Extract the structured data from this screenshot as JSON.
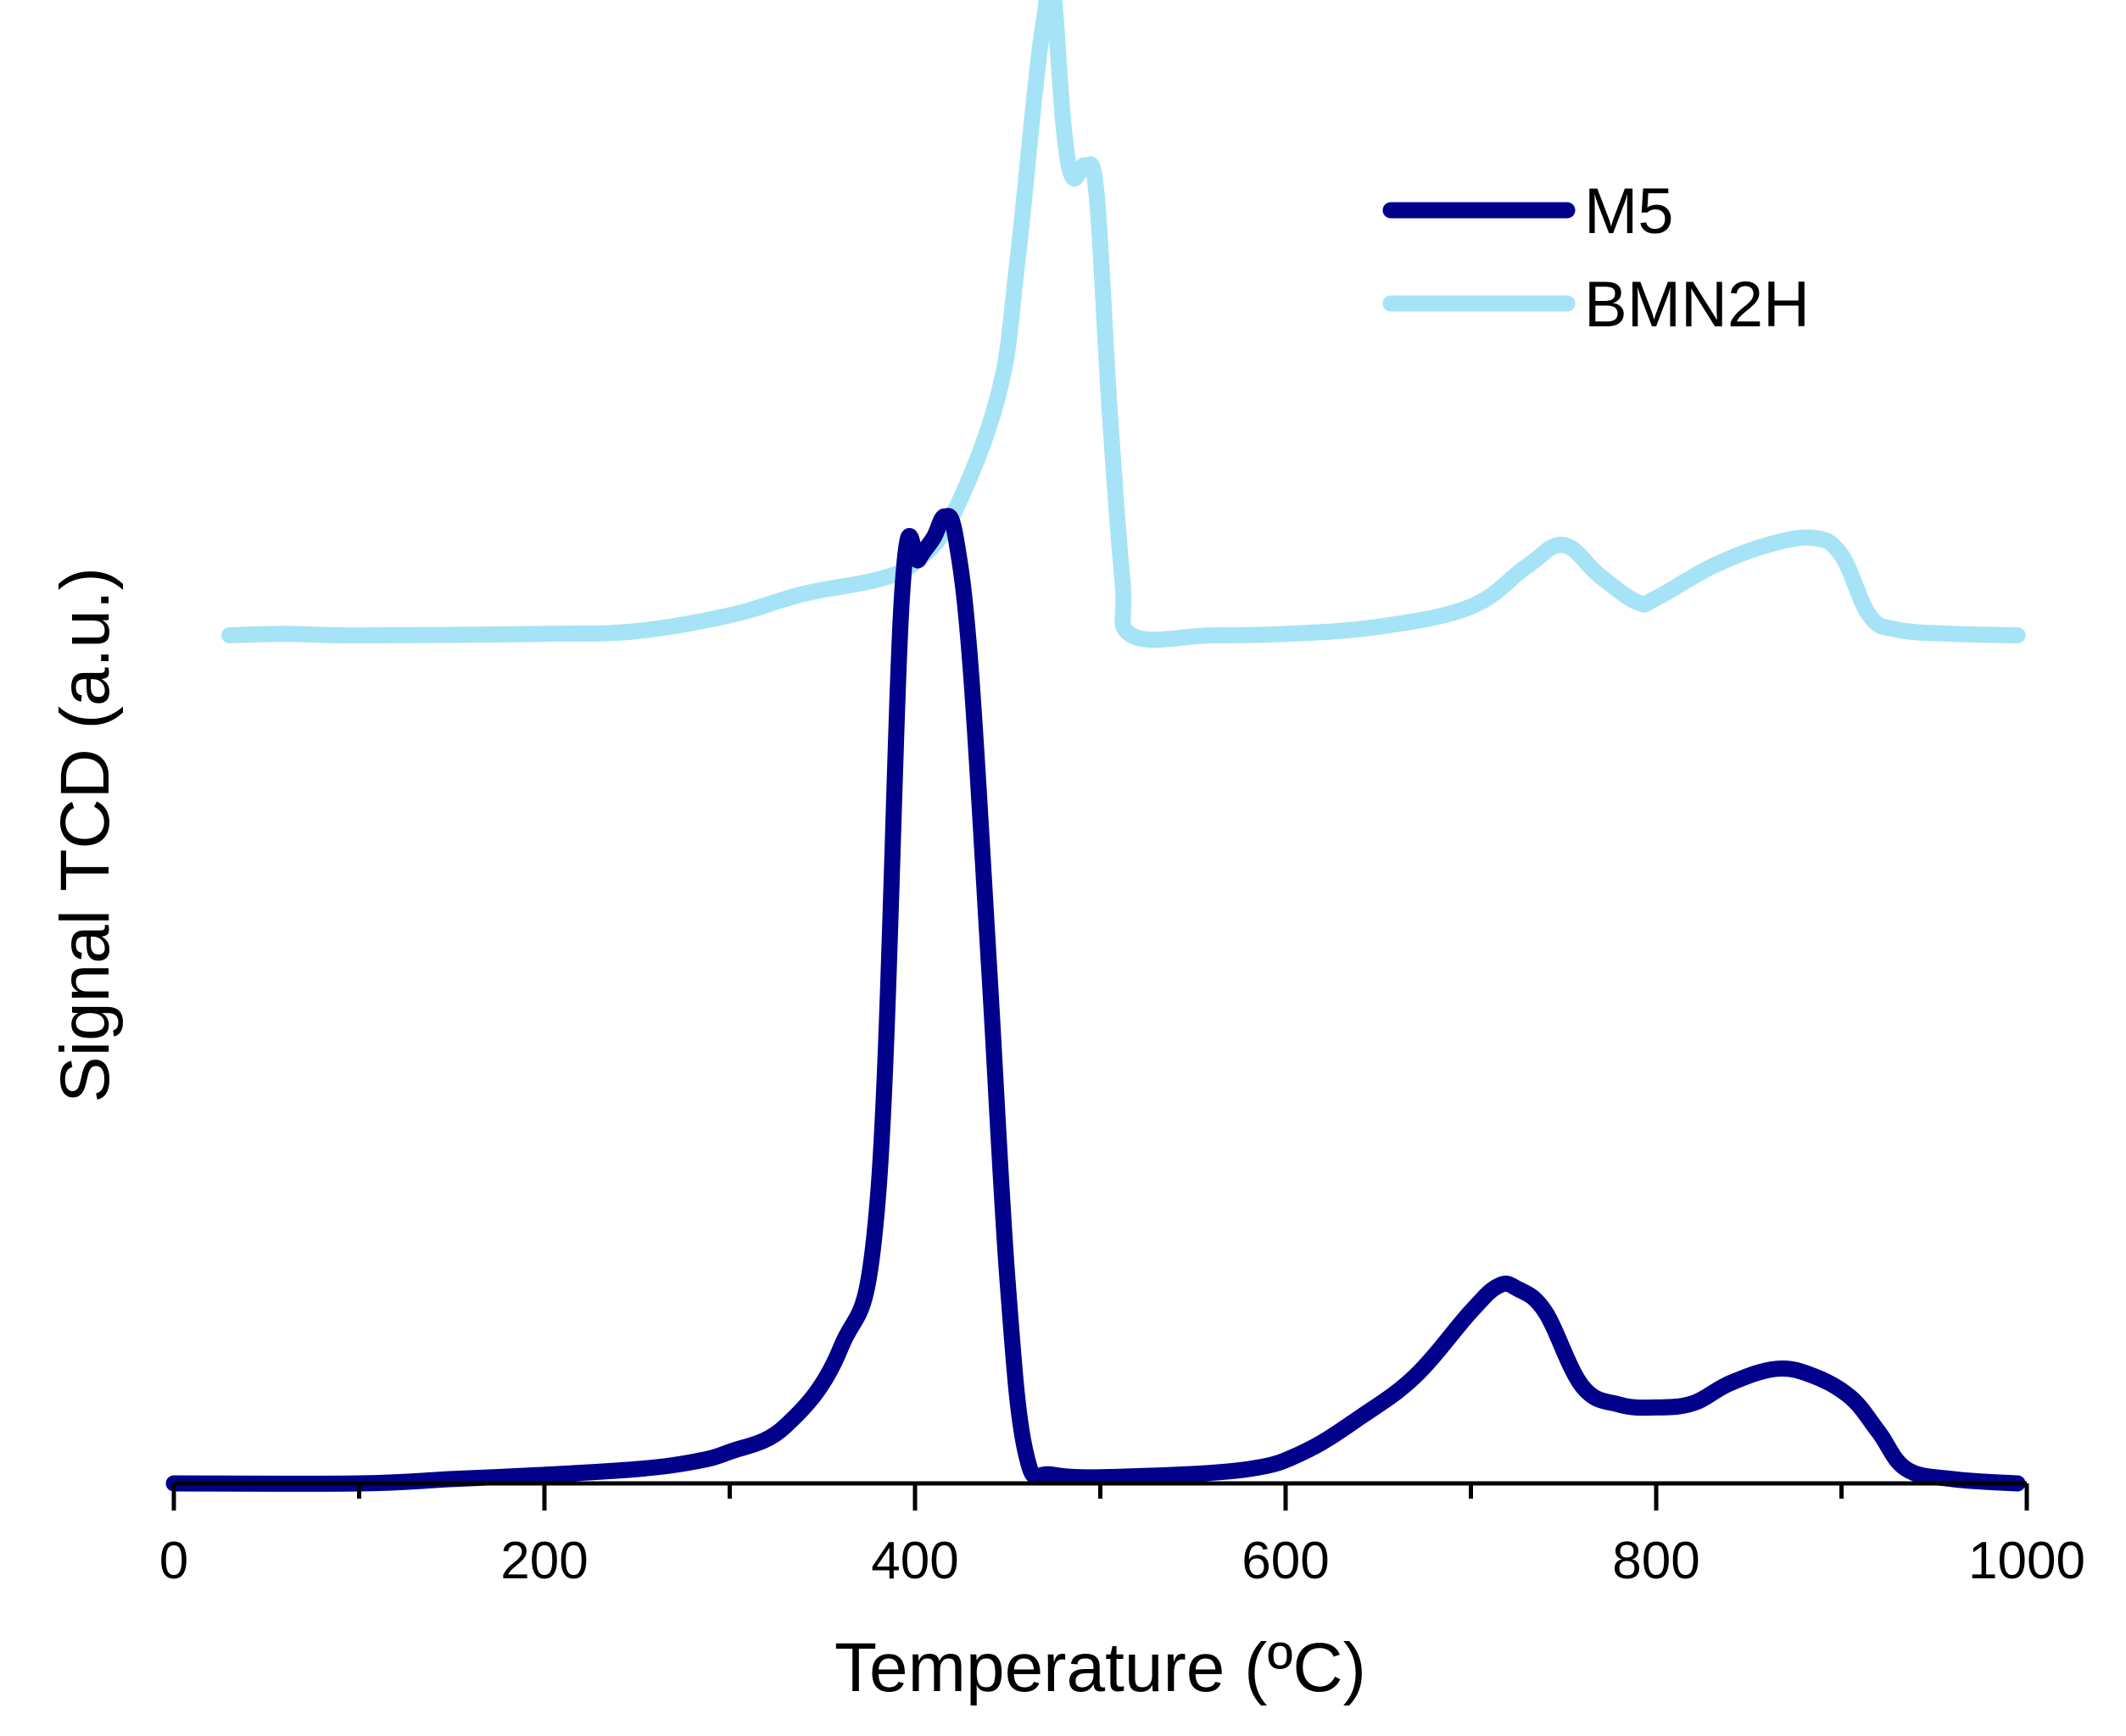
{
  "chart_data": {
    "type": "line",
    "xlabel": "Temperature (ºC)",
    "ylabel": "Signal TCD (a.u.)",
    "xlim": [
      0,
      1000
    ],
    "ylim": [
      0,
      10
    ],
    "grid": false,
    "legend_position": "top-right",
    "x_tick_labels": [
      "0",
      "200",
      "400",
      "600",
      "800",
      "1000"
    ],
    "x_major_ticks": [
      0,
      200,
      400,
      600,
      800,
      1000
    ],
    "x_minor_ticks": [
      100,
      300,
      500,
      700,
      900
    ],
    "series": [
      {
        "name": "M5",
        "color": "#00008b",
        "points": [
          [
            0,
            0.0
          ],
          [
            100,
            0.0
          ],
          [
            150,
            0.03
          ],
          [
            200,
            0.06
          ],
          [
            250,
            0.1
          ],
          [
            280,
            0.15
          ],
          [
            300,
            0.22
          ],
          [
            330,
            0.4
          ],
          [
            360,
            0.95
          ],
          [
            380,
            2.0
          ],
          [
            393,
            6.2
          ],
          [
            402,
            6.45
          ],
          [
            410,
            6.6
          ],
          [
            416,
            6.75
          ],
          [
            422,
            6.6
          ],
          [
            430,
            5.7
          ],
          [
            440,
            3.6
          ],
          [
            450,
            1.4
          ],
          [
            460,
            0.2
          ],
          [
            475,
            0.06
          ],
          [
            520,
            0.05
          ],
          [
            580,
            0.1
          ],
          [
            610,
            0.22
          ],
          [
            640,
            0.46
          ],
          [
            670,
            0.75
          ],
          [
            700,
            1.2
          ],
          [
            715,
            1.38
          ],
          [
            725,
            1.36
          ],
          [
            740,
            1.2
          ],
          [
            760,
            0.68
          ],
          [
            780,
            0.55
          ],
          [
            800,
            0.53
          ],
          [
            820,
            0.56
          ],
          [
            840,
            0.7
          ],
          [
            865,
            0.8
          ],
          [
            885,
            0.75
          ],
          [
            905,
            0.6
          ],
          [
            920,
            0.36
          ],
          [
            935,
            0.1
          ],
          [
            960,
            0.03
          ],
          [
            995,
            0.0
          ]
        ]
      },
      {
        "name": "BMN2H",
        "color": "#a6e3f7",
        "points": [
          [
            30,
            5.92
          ],
          [
            60,
            5.93
          ],
          [
            100,
            5.92
          ],
          [
            200,
            5.93
          ],
          [
            250,
            5.95
          ],
          [
            300,
            6.06
          ],
          [
            340,
            6.21
          ],
          [
            380,
            6.31
          ],
          [
            400,
            6.43
          ],
          [
            420,
            6.75
          ],
          [
            445,
            7.6
          ],
          [
            455,
            8.5
          ],
          [
            465,
            9.75
          ],
          [
            470,
            10.25
          ],
          [
            474,
            10.5
          ],
          [
            480,
            9.5
          ],
          [
            485,
            9.12
          ],
          [
            492,
            9.2
          ],
          [
            498,
            9.0
          ],
          [
            505,
            7.5
          ],
          [
            512,
            6.3
          ],
          [
            517,
            5.92
          ],
          [
            560,
            5.92
          ],
          [
            600,
            5.93
          ],
          [
            650,
            5.98
          ],
          [
            700,
            6.12
          ],
          [
            730,
            6.4
          ],
          [
            750,
            6.55
          ],
          [
            770,
            6.33
          ],
          [
            790,
            6.15
          ],
          [
            800,
            6.18
          ],
          [
            830,
            6.4
          ],
          [
            860,
            6.55
          ],
          [
            885,
            6.6
          ],
          [
            900,
            6.48
          ],
          [
            915,
            6.06
          ],
          [
            930,
            5.96
          ],
          [
            960,
            5.93
          ],
          [
            995,
            5.92
          ]
        ]
      }
    ]
  }
}
